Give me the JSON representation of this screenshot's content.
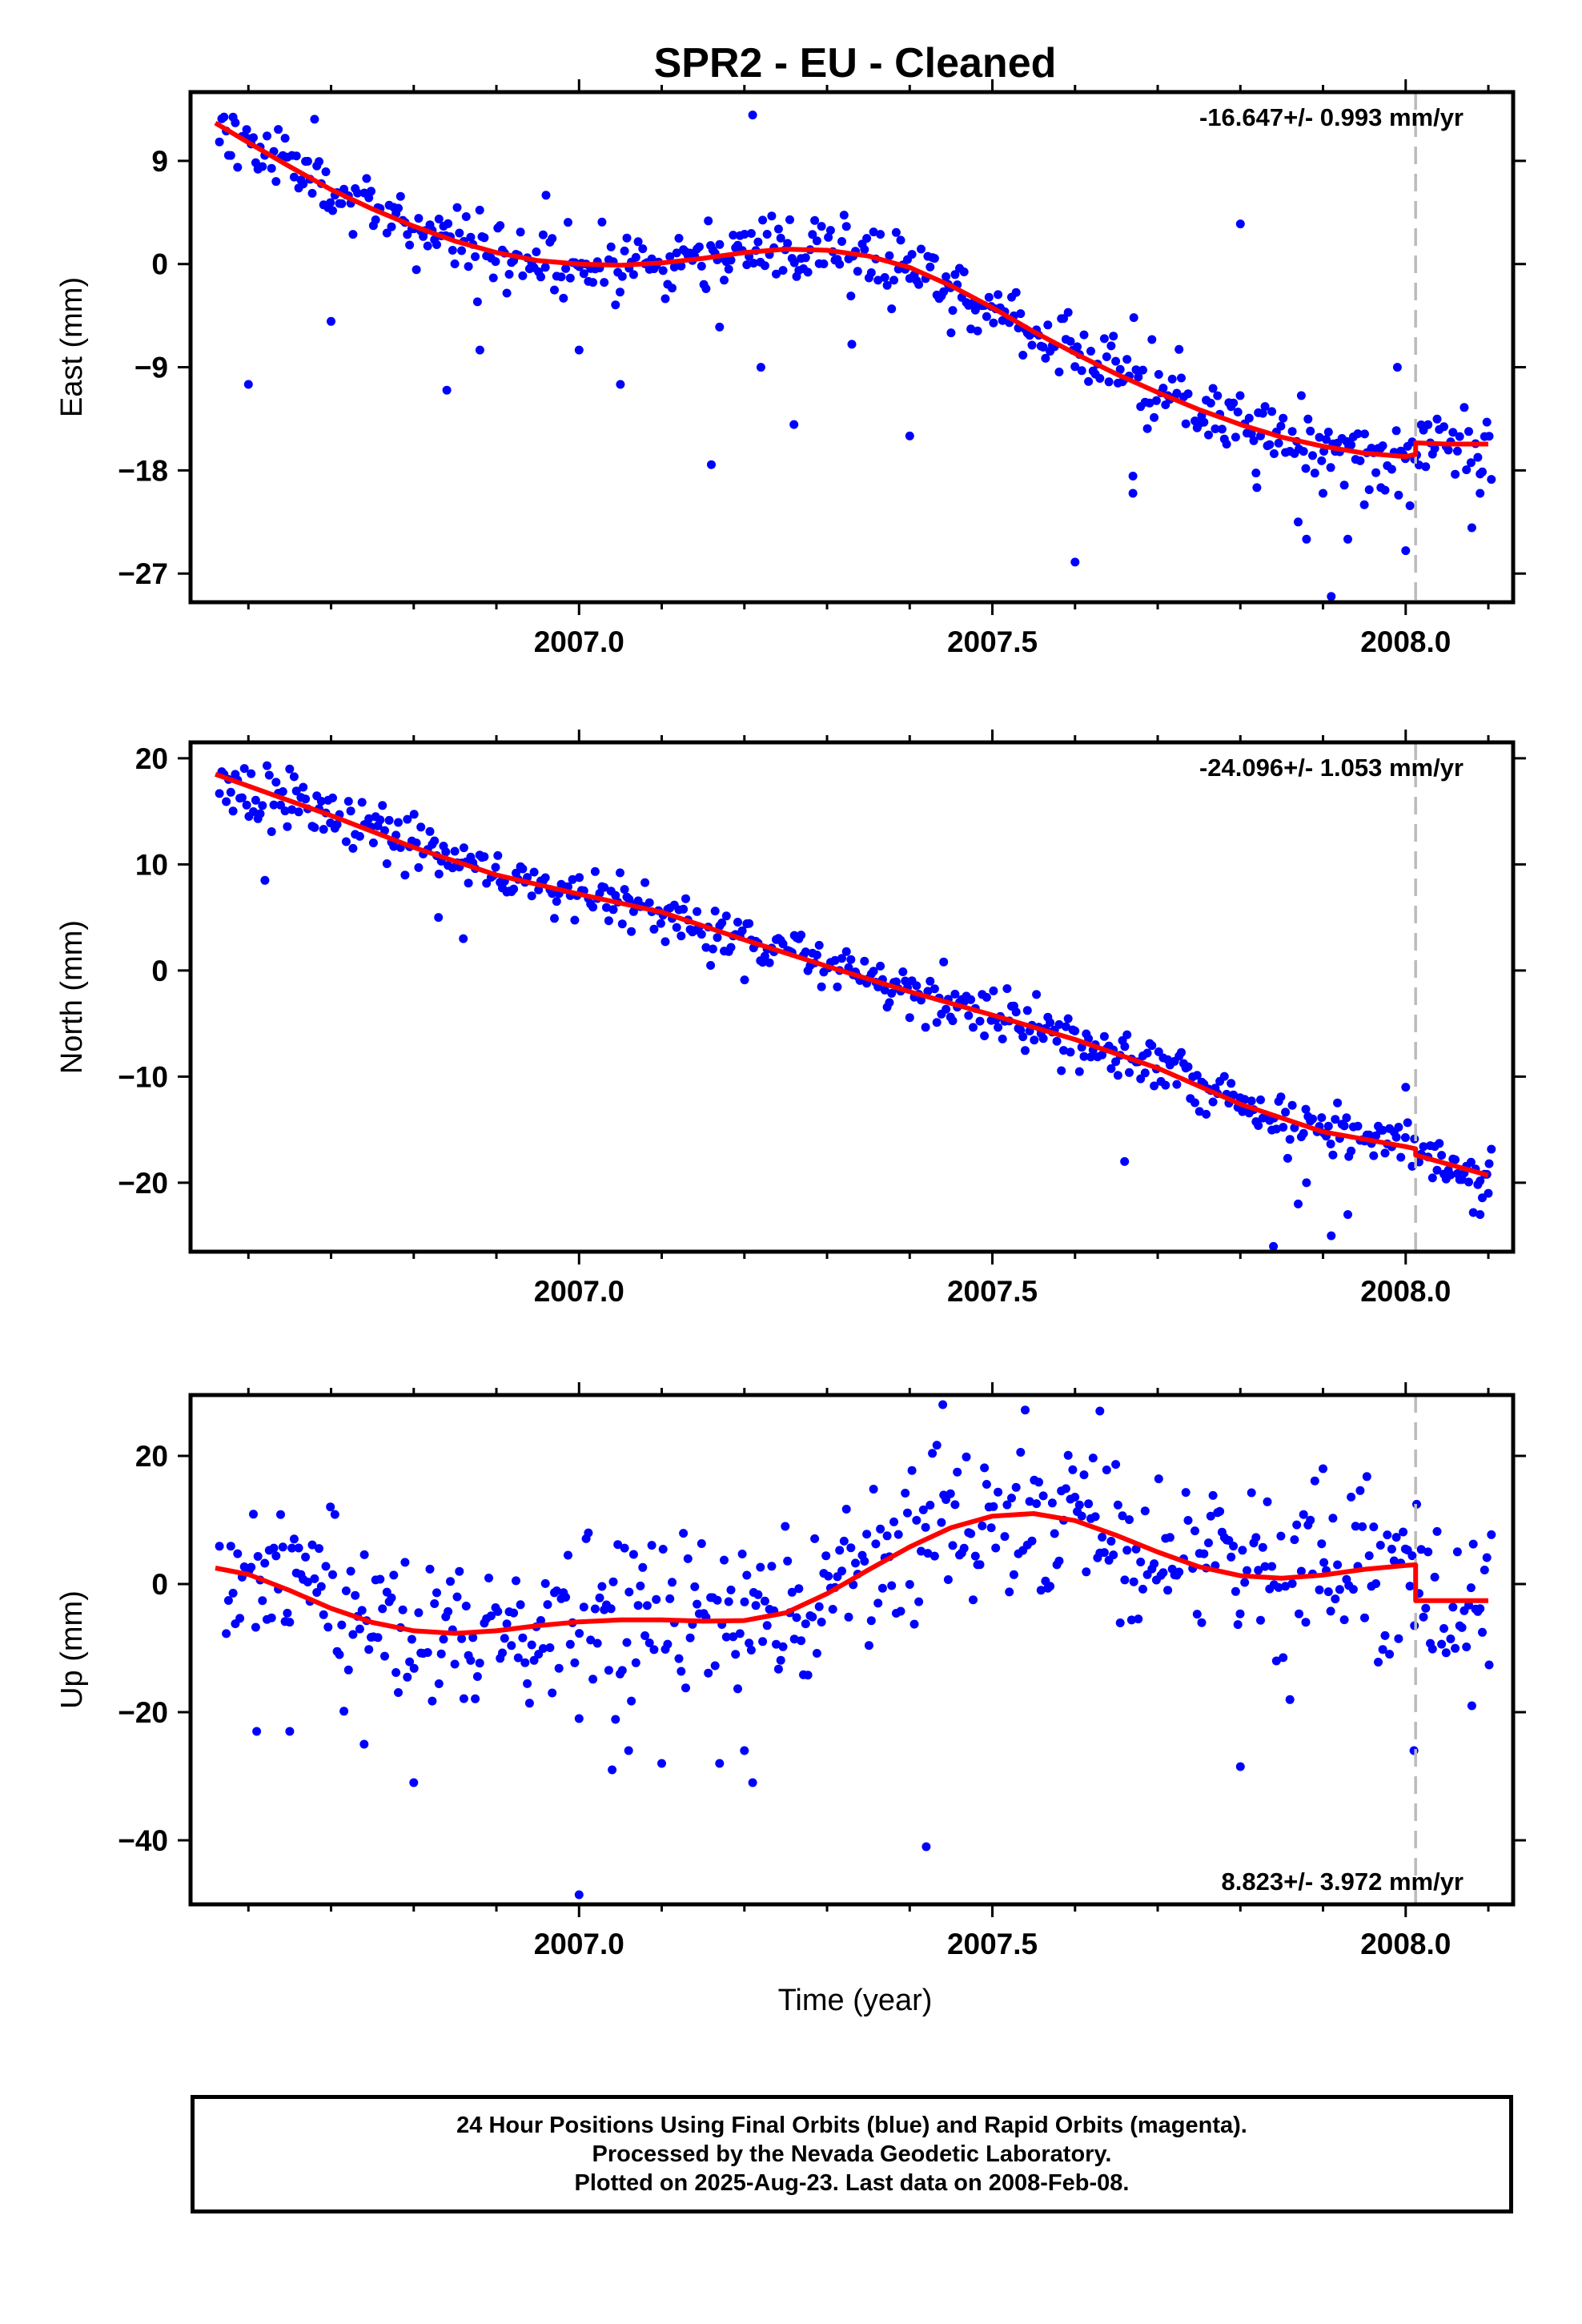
{
  "title": "SPR2  - EU - Cleaned",
  "xlabel": "Time (year)",
  "colors": {
    "points": "#0000ff",
    "fit": "#ff0000",
    "break_line": "#bbbbbb",
    "axes": "#000000"
  },
  "footer": {
    "line1": "24 Hour Positions Using Final Orbits (blue) and Rapid Orbits (magenta).",
    "line2": "Processed by the Nevada Geodetic Laboratory.",
    "line3": "Plotted on 2025-Aug-23. Last data on 2008-Feb-08."
  },
  "chart_data": [
    {
      "type": "scatter",
      "ylabel": "East (mm)",
      "rate_label": "-16.647+/- 0.993 mm/yr",
      "xlim": [
        2006.53,
        2008.13
      ],
      "ylim": [
        -29.5,
        15.0
      ],
      "xticks": [
        2007.0,
        2007.5,
        2008.0
      ],
      "xtick_labels": [
        "2007.0",
        "2007.5",
        "2008.0"
      ],
      "yticks": [
        9,
        0,
        -9,
        -18,
        -27
      ],
      "ytick_labels": [
        "9",
        "0",
        "−9",
        "−18",
        "−27"
      ],
      "break_epoch": 2008.012,
      "fit": [
        [
          2006.56,
          12.3
        ],
        [
          2006.6,
          10.6
        ],
        [
          2006.65,
          8.5
        ],
        [
          2006.7,
          6.5
        ],
        [
          2006.75,
          4.8
        ],
        [
          2006.8,
          3.3
        ],
        [
          2006.85,
          2.0
        ],
        [
          2006.9,
          1.0
        ],
        [
          2006.95,
          0.3
        ],
        [
          2007.0,
          0.0
        ],
        [
          2007.05,
          -0.1
        ],
        [
          2007.1,
          0.1
        ],
        [
          2007.15,
          0.5
        ],
        [
          2007.2,
          1.0
        ],
        [
          2007.25,
          1.3
        ],
        [
          2007.3,
          1.2
        ],
        [
          2007.35,
          0.7
        ],
        [
          2007.4,
          -0.3
        ],
        [
          2007.45,
          -1.9
        ],
        [
          2007.5,
          -3.8
        ],
        [
          2007.55,
          -5.9
        ],
        [
          2007.6,
          -7.8
        ],
        [
          2007.65,
          -9.6
        ],
        [
          2007.7,
          -11.2
        ],
        [
          2007.75,
          -12.7
        ],
        [
          2007.8,
          -14.0
        ],
        [
          2007.85,
          -15.1
        ],
        [
          2007.9,
          -15.9
        ],
        [
          2007.95,
          -16.5
        ],
        [
          2008.0,
          -16.8
        ],
        [
          2008.012,
          -16.6
        ],
        [
          2008.012,
          -15.6
        ],
        [
          2008.05,
          -15.7
        ],
        [
          2008.1,
          -15.7
        ]
      ],
      "noise": 1.5,
      "seed": 11,
      "outliers": [
        [
          2006.6,
          -10.5
        ],
        [
          2006.7,
          -5.0
        ],
        [
          2006.84,
          -11.0
        ],
        [
          2006.88,
          -7.5
        ],
        [
          2006.96,
          6.0
        ],
        [
          2007.0,
          -7.5
        ],
        [
          2007.05,
          -10.5
        ],
        [
          2007.16,
          -17.5
        ],
        [
          2007.17,
          -5.5
        ],
        [
          2007.21,
          13.0
        ],
        [
          2007.22,
          -9.0
        ],
        [
          2007.26,
          -14.0
        ],
        [
          2007.33,
          -7.0
        ],
        [
          2007.4,
          -15.0
        ],
        [
          2007.45,
          -6.0
        ],
        [
          2007.6,
          -26.0
        ],
        [
          2007.67,
          -18.5
        ],
        [
          2007.67,
          -20.0
        ],
        [
          2007.8,
          3.5
        ],
        [
          2007.82,
          -19.5
        ],
        [
          2007.87,
          -22.5
        ],
        [
          2007.88,
          -24.0
        ],
        [
          2007.9,
          -20.0
        ],
        [
          2007.93,
          -24.0
        ],
        [
          2007.95,
          -21.0
        ],
        [
          2007.97,
          -19.5
        ],
        [
          2007.99,
          -9.0
        ],
        [
          2008.0,
          -25.0
        ],
        [
          2007.91,
          -29.0
        ],
        [
          2008.08,
          -23.0
        ],
        [
          2008.09,
          -20.0
        ]
      ]
    },
    {
      "type": "scatter",
      "ylabel": "North (mm)",
      "rate_label": "-24.096+/- 1.053 mm/yr",
      "xlim": [
        2006.53,
        2008.13
      ],
      "ylim": [
        -26.5,
        21.5
      ],
      "xticks": [
        2007.0,
        2007.5,
        2008.0
      ],
      "xtick_labels": [
        "2007.0",
        "2007.5",
        "2008.0"
      ],
      "yticks": [
        20,
        10,
        0,
        -10,
        -20
      ],
      "ytick_labels": [
        "20",
        "10",
        "0",
        "−10",
        "−20"
      ],
      "break_epoch": 2008.012,
      "fit": [
        [
          2006.56,
          18.5
        ],
        [
          2006.7,
          14.6
        ],
        [
          2006.8,
          11.6
        ],
        [
          2006.9,
          9.0
        ],
        [
          2007.0,
          7.2
        ],
        [
          2007.1,
          5.5
        ],
        [
          2007.2,
          2.9
        ],
        [
          2007.3,
          0.4
        ],
        [
          2007.4,
          -2.0
        ],
        [
          2007.5,
          -4.2
        ],
        [
          2007.6,
          -6.5
        ],
        [
          2007.7,
          -9.2
        ],
        [
          2007.8,
          -12.6
        ],
        [
          2007.9,
          -15.2
        ],
        [
          2008.0,
          -16.6
        ],
        [
          2008.012,
          -16.8
        ],
        [
          2008.012,
          -17.4
        ],
        [
          2008.1,
          -19.3
        ]
      ],
      "noise": 1.3,
      "seed": 23,
      "outliers": [
        [
          2006.62,
          8.5
        ],
        [
          2006.83,
          5.0
        ],
        [
          2006.86,
          3.0
        ],
        [
          2007.66,
          -18.0
        ],
        [
          2007.84,
          -26.0
        ],
        [
          2007.87,
          -22.0
        ],
        [
          2007.88,
          -20.0
        ],
        [
          2007.91,
          -25.0
        ],
        [
          2007.93,
          -23.0
        ],
        [
          2008.0,
          -11.0
        ],
        [
          2008.09,
          -23.0
        ],
        [
          2008.1,
          -21.0
        ]
      ]
    },
    {
      "type": "scatter",
      "ylabel": "Up (mm)",
      "rate_label": "8.823+/- 3.972 mm/yr",
      "xlim": [
        2006.53,
        2008.13
      ],
      "ylim": [
        -50.0,
        29.5
      ],
      "xticks": [
        2007.0,
        2007.5,
        2008.0
      ],
      "xtick_labels": [
        "2007.0",
        "2007.5",
        "2008.0"
      ],
      "yticks": [
        20,
        0,
        -20,
        -40
      ],
      "ytick_labels": [
        "20",
        "0",
        "−20",
        "−40"
      ],
      "break_epoch": 2008.012,
      "fit": [
        [
          2006.56,
          2.5
        ],
        [
          2006.6,
          1.5
        ],
        [
          2006.65,
          -1.0
        ],
        [
          2006.7,
          -3.8
        ],
        [
          2006.75,
          -6.0
        ],
        [
          2006.8,
          -7.3
        ],
        [
          2006.85,
          -7.7
        ],
        [
          2006.9,
          -7.3
        ],
        [
          2006.95,
          -6.5
        ],
        [
          2007.0,
          -5.9
        ],
        [
          2007.05,
          -5.6
        ],
        [
          2007.1,
          -5.6
        ],
        [
          2007.15,
          -5.8
        ],
        [
          2007.2,
          -5.7
        ],
        [
          2007.25,
          -4.5
        ],
        [
          2007.3,
          -1.5
        ],
        [
          2007.35,
          2.2
        ],
        [
          2007.4,
          5.8
        ],
        [
          2007.45,
          8.8
        ],
        [
          2007.5,
          10.6
        ],
        [
          2007.55,
          11.0
        ],
        [
          2007.6,
          9.9
        ],
        [
          2007.65,
          7.6
        ],
        [
          2007.7,
          5.0
        ],
        [
          2007.75,
          2.7
        ],
        [
          2007.8,
          1.3
        ],
        [
          2007.85,
          0.9
        ],
        [
          2007.9,
          1.4
        ],
        [
          2007.95,
          2.3
        ],
        [
          2008.0,
          2.9
        ],
        [
          2008.012,
          3.0
        ],
        [
          2008.012,
          -2.6
        ],
        [
          2008.1,
          -2.6
        ]
      ],
      "noise": 6.5,
      "seed": 37,
      "outliers": [
        [
          2006.61,
          -23.0
        ],
        [
          2006.65,
          -23.0
        ],
        [
          2006.74,
          -25.0
        ],
        [
          2006.8,
          -31.0
        ],
        [
          2007.0,
          -21.0
        ],
        [
          2007.0,
          -48.5
        ],
        [
          2007.04,
          -29.0
        ],
        [
          2007.06,
          -26.0
        ],
        [
          2007.1,
          -28.0
        ],
        [
          2007.17,
          -28.0
        ],
        [
          2007.2,
          -26.0
        ],
        [
          2007.21,
          -31.0
        ],
        [
          2007.42,
          -41.0
        ],
        [
          2007.44,
          28.0
        ],
        [
          2007.63,
          27.0
        ],
        [
          2007.8,
          -28.5
        ],
        [
          2007.9,
          18.0
        ],
        [
          2008.01,
          -26.0
        ],
        [
          2008.08,
          -19.0
        ]
      ]
    }
  ]
}
